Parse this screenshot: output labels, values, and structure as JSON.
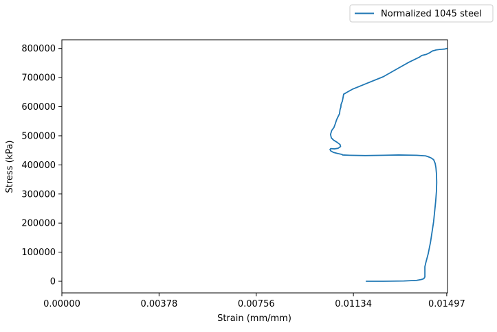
{
  "chart_data": {
    "type": "line",
    "title": "",
    "xlabel": "Strain (mm/mm)",
    "ylabel": "Stress (kPa)",
    "xlim": [
      0.0,
      0.015
    ],
    "ylim": [
      -40000,
      830000
    ],
    "xticks": [
      0.0,
      0.00378,
      0.00756,
      0.01134,
      0.01497
    ],
    "xtick_labels": [
      "0.00000",
      "0.00378",
      "0.00756",
      "0.01134",
      "0.01497"
    ],
    "yticks": [
      0,
      100000,
      200000,
      300000,
      400000,
      500000,
      600000,
      700000,
      800000
    ],
    "ytick_labels": [
      "0",
      "100000",
      "200000",
      "300000",
      "400000",
      "500000",
      "600000",
      "700000",
      "800000"
    ],
    "grid": false,
    "legend": "above-right",
    "colors": {
      "series": "#1f77b4",
      "axes": "#000000"
    },
    "series": [
      {
        "name": "Normalized 1045 steel",
        "x": [
          0.01184,
          0.0125,
          0.0133,
          0.0138,
          0.01398,
          0.01408,
          0.01412,
          0.01412,
          0.01416,
          0.01425,
          0.01434,
          0.0144,
          0.01446,
          0.0145,
          0.01454,
          0.01457,
          0.01458,
          0.01457,
          0.01455,
          0.01452,
          0.01446,
          0.01436,
          0.01425,
          0.01415,
          0.0138,
          0.0131,
          0.0125,
          0.0118,
          0.0112,
          0.01092,
          0.0109,
          0.01074,
          0.01056,
          0.01046,
          0.01043,
          0.01046,
          0.0106,
          0.01074,
          0.01084,
          0.01082,
          0.0107,
          0.01057,
          0.01048,
          0.01045,
          0.0105,
          0.01058,
          0.01063,
          0.01069,
          0.01075,
          0.0108,
          0.01082,
          0.01085,
          0.01086,
          0.01091,
          0.01093,
          0.01096,
          0.0113,
          0.0118,
          0.0125,
          0.0131,
          0.0135,
          0.0139,
          0.014,
          0.01418,
          0.01432,
          0.01438,
          0.01443,
          0.01448,
          0.01448,
          0.01455,
          0.01472,
          0.01488,
          0.01497
        ],
        "y": [
          0,
          0,
          1000,
          3000,
          6000,
          9000,
          15000,
          50000,
          65000,
          95000,
          135000,
          170000,
          205000,
          240000,
          275000,
          310000,
          340000,
          370000,
          390000,
          405000,
          418000,
          424000,
          428000,
          431000,
          433000,
          434000,
          433000,
          432000,
          433000,
          434000,
          436000,
          439000,
          443000,
          448000,
          453000,
          456000,
          455000,
          457000,
          463000,
          470000,
          478000,
          485000,
          493000,
          505000,
          519000,
          528000,
          540000,
          556000,
          567000,
          576000,
          590000,
          598000,
          608000,
          619000,
          628000,
          643000,
          660000,
          678000,
          703000,
          733000,
          753000,
          770000,
          776000,
          780000,
          786000,
          790000,
          792000,
          793000,
          793000,
          795000,
          797000,
          798000,
          800000
        ]
      }
    ]
  }
}
